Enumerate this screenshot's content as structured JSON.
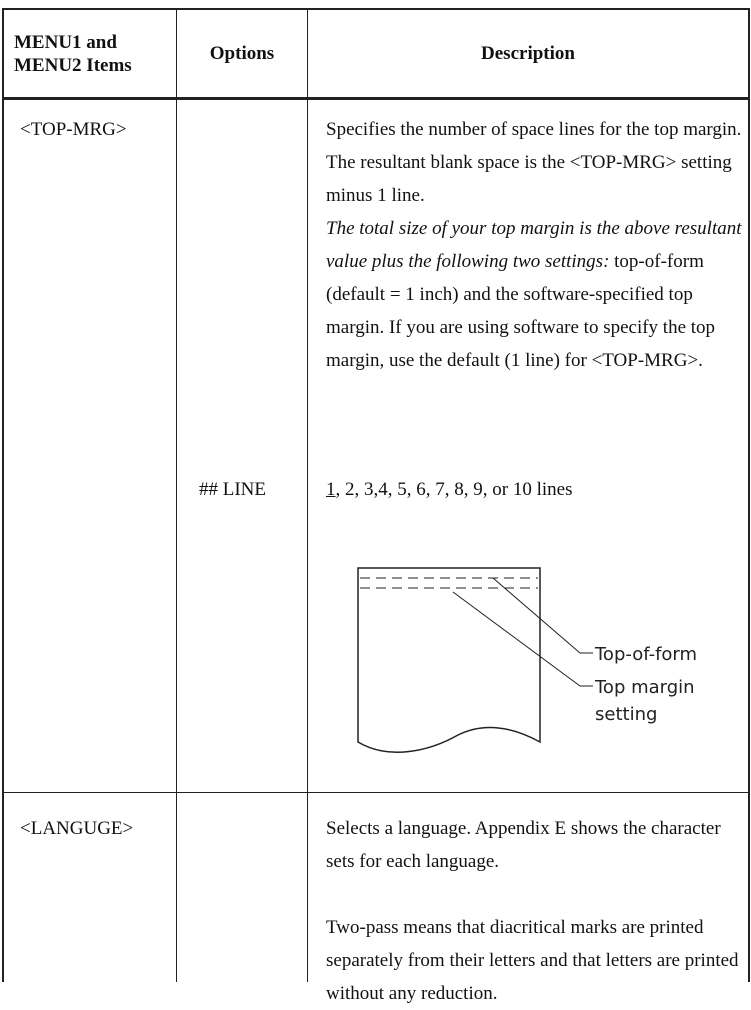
{
  "table": {
    "header": [
      "MENU1 and\nMENU2 Items",
      "Options",
      "Description"
    ],
    "rows": [
      {
        "item": "<TOP-MRG>",
        "description": [
          "Specifies the number of space lines for the top margin.  The resultant blank space is the <TOP-MRG> setting minus 1 line.",
          "The total size of your top margin is the above resultant value plus the following two settings:",
          " top-of-form (default = 1 inch) and the software-specified top margin.  If you are using software to specify the top margin, use the default (1 line) for <TOP-MRG>."
        ],
        "option": "## LINE",
        "option_values": [
          "1",
          ", 2, 3,4, 5, 6, 7, 8, 9, or 10 lines"
        ],
        "diagram": {
          "labels": [
            "Top-of-form",
            "Top margin\nsetting"
          ]
        }
      },
      {
        "item": "<LANGUGE>",
        "description": [
          "Selects a language.  Appendix E shows the character sets for each language.",
          "Two-pass means that diacritical marks are printed separately from their letters  and that letters are printed without any reduction."
        ]
      }
    ]
  }
}
